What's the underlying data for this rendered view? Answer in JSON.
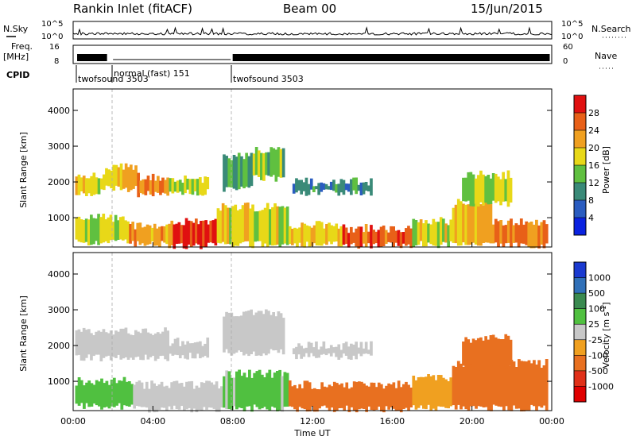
{
  "header": {
    "station": "Rankin Inlet (fitACF)",
    "beam": "Beam 00",
    "date": "15/Jun/2015"
  },
  "side_labels": {
    "nsky": "N.Sky",
    "freq": "Freq.",
    "freq_unit": "[MHz]",
    "cpid": "CPID",
    "nsearch": "N.Search",
    "nave": "Nave",
    "nsky_ticks": [
      "10^5",
      "10^0"
    ],
    "freq_ticks": [
      "16",
      "8"
    ],
    "nave_ticks": [
      "60",
      "0"
    ]
  },
  "cpid_labels": [
    {
      "text": "twofsound 3503",
      "x_hour": 0.2
    },
    {
      "text": "normal (fast) 151",
      "x_hour": 2.0
    },
    {
      "text": "twofsound 3503",
      "x_hour": 8.0
    }
  ],
  "x_axis": {
    "label": "Time UT",
    "ticks": [
      "00:00",
      "04:00",
      "08:00",
      "12:00",
      "16:00",
      "20:00",
      "00:00"
    ],
    "range_hours": [
      0,
      24
    ]
  },
  "y_axis": {
    "label": "Slant Range [km]",
    "ticks": [
      "1000",
      "2000",
      "3000",
      "4000"
    ],
    "range_km": [
      180,
      4600
    ]
  },
  "power_scale": {
    "label": "Power [dB]",
    "ticks": [
      "4",
      "8",
      "12",
      "16",
      "20",
      "24",
      "28"
    ],
    "colors": [
      "#0a22e0",
      "#2a5cc0",
      "#3a8a78",
      "#60c040",
      "#e8d818",
      "#f0a020",
      "#e86018",
      "#e01010"
    ]
  },
  "velocity_scale": {
    "label": "Velocity [m s",
    "label_sup": "-1",
    "label_close": "]",
    "ticks": [
      "1000",
      "500",
      "100",
      "25",
      "-25",
      "-100",
      "-500",
      "-1000"
    ],
    "colors": [
      "#1a3ad0",
      "#3070b8",
      "#3a8a50",
      "#50c040",
      "#c8c8c8",
      "#f0a020",
      "#e87020",
      "#e03018",
      "#e00000"
    ]
  },
  "chart_data": [
    {
      "type": "heatmap",
      "title": "Power",
      "xlabel": "Time UT",
      "ylabel": "Slant Range [km]",
      "xlim": [
        0,
        24
      ],
      "ylim": [
        180,
        4600
      ],
      "colorbar_label": "Power [dB]",
      "patches": [
        {
          "t0": 0.1,
          "t1": 1.6,
          "r0": 1700,
          "r1": 2200,
          "v": 18
        },
        {
          "t0": 1.6,
          "t1": 3.2,
          "r0": 1800,
          "r1": 2400,
          "v": 20
        },
        {
          "t0": 3.2,
          "t1": 4.8,
          "r0": 1650,
          "r1": 2150,
          "v": 24
        },
        {
          "t0": 4.8,
          "t1": 6.8,
          "r0": 1700,
          "r1": 2100,
          "v": 16
        },
        {
          "t0": 7.5,
          "t1": 9.0,
          "r0": 1800,
          "r1": 2700,
          "v": 12
        },
        {
          "t0": 9.0,
          "t1": 10.6,
          "r0": 2100,
          "r1": 2900,
          "v": 14
        },
        {
          "t0": 0.1,
          "t1": 2.8,
          "r0": 300,
          "r1": 1000,
          "v": 16
        },
        {
          "t0": 2.8,
          "t1": 5.0,
          "r0": 250,
          "r1": 800,
          "v": 22
        },
        {
          "t0": 5.0,
          "t1": 7.2,
          "r0": 220,
          "r1": 900,
          "v": 30
        },
        {
          "t0": 7.2,
          "t1": 10.8,
          "r0": 250,
          "r1": 1300,
          "v": 18
        },
        {
          "t0": 10.8,
          "t1": 13.5,
          "r0": 250,
          "r1": 800,
          "v": 20
        },
        {
          "t0": 13.5,
          "t1": 17.0,
          "r0": 230,
          "r1": 700,
          "v": 26
        },
        {
          "t0": 17.0,
          "t1": 19.0,
          "r0": 250,
          "r1": 900,
          "v": 18
        },
        {
          "t0": 19.0,
          "t1": 21.0,
          "r0": 300,
          "r1": 1400,
          "v": 20
        },
        {
          "t0": 21.0,
          "t1": 23.8,
          "r0": 220,
          "r1": 900,
          "v": 24
        },
        {
          "t0": 19.5,
          "t1": 22.0,
          "r0": 1400,
          "r1": 2200,
          "v": 16
        },
        {
          "t0": 11.0,
          "t1": 15.0,
          "r0": 1700,
          "r1": 2000,
          "v": 10
        }
      ]
    },
    {
      "type": "heatmap",
      "title": "Velocity",
      "xlabel": "Time UT",
      "ylabel": "Slant Range [km]",
      "xlim": [
        0,
        24
      ],
      "ylim": [
        180,
        4600
      ],
      "colorbar_label": "Velocity [m s-1]",
      "patches": [
        {
          "t0": 0.1,
          "t1": 4.8,
          "r0": 1650,
          "r1": 2400,
          "v": 0
        },
        {
          "t0": 4.8,
          "t1": 6.8,
          "r0": 1700,
          "r1": 2100,
          "v": 0
        },
        {
          "t0": 7.5,
          "t1": 10.6,
          "r0": 1800,
          "r1": 2900,
          "v": 0
        },
        {
          "t0": 0.1,
          "t1": 3.0,
          "r0": 300,
          "r1": 1000,
          "v": 80
        },
        {
          "t0": 3.0,
          "t1": 7.5,
          "r0": 220,
          "r1": 900,
          "v": 0
        },
        {
          "t0": 7.5,
          "t1": 10.8,
          "r0": 250,
          "r1": 1200,
          "v": 40
        },
        {
          "t0": 10.8,
          "t1": 17.0,
          "r0": 230,
          "r1": 900,
          "v": -150
        },
        {
          "t0": 17.0,
          "t1": 19.0,
          "r0": 250,
          "r1": 1100,
          "v": -80
        },
        {
          "t0": 19.0,
          "t1": 23.8,
          "r0": 250,
          "r1": 1500,
          "v": -200
        },
        {
          "t0": 19.5,
          "t1": 22.0,
          "r0": 1400,
          "r1": 2200,
          "v": -150
        },
        {
          "t0": 11.0,
          "t1": 15.0,
          "r0": 1700,
          "r1": 2000,
          "v": 0
        }
      ]
    }
  ]
}
